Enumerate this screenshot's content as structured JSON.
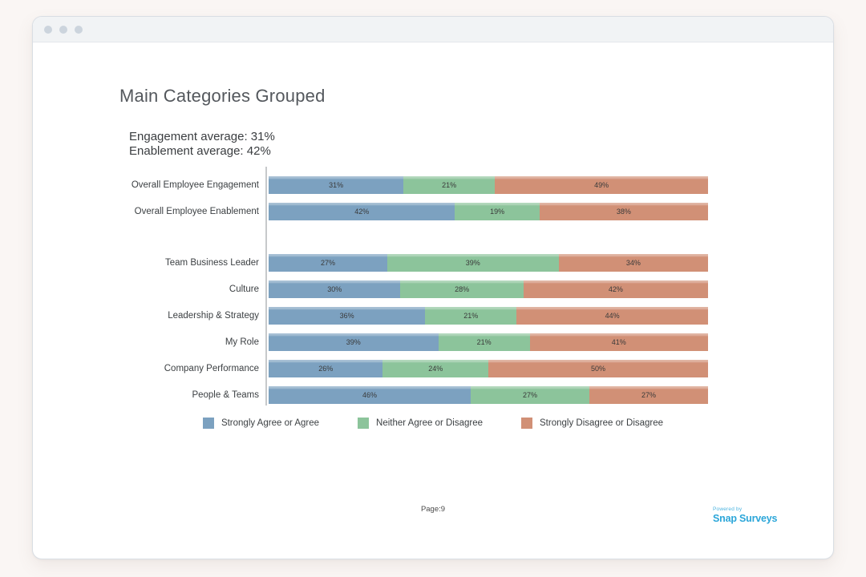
{
  "window": {
    "traffic_dots": [
      "window-dot",
      "window-dot",
      "window-dot"
    ]
  },
  "report": {
    "title": "Main Categories Grouped",
    "summary": {
      "line1": "Engagement average: 31%",
      "line2": "Enablement average: 42%"
    },
    "footer": {
      "page_label": "Page:9",
      "powered_by": "Powered by",
      "brand": "Snap Surveys",
      "brand_color": "#2ba6d9"
    }
  },
  "chart_data": {
    "type": "bar",
    "orientation": "horizontal",
    "stacked": true,
    "normalized_to_full_width": true,
    "grid": false,
    "legend_position": "bottom",
    "value_suffix": "%",
    "categories": [
      "Overall Employee Engagement",
      "Overall Employee Enablement",
      "Team Business Leader",
      "Culture",
      "Leadership & Strategy",
      "My Role",
      "Company Performance",
      "People & Teams"
    ],
    "group_break_after_index": 1,
    "series": [
      {
        "name": "Strongly Agree or Agree",
        "color": "#7CA1C0",
        "values": [
          31,
          42,
          27,
          30,
          36,
          39,
          26,
          46
        ]
      },
      {
        "name": "Neither Agree or Disagree",
        "color": "#8CC49B",
        "values": [
          21,
          19,
          39,
          28,
          21,
          21,
          24,
          27
        ]
      },
      {
        "name": "Strongly Disagree or Disagree",
        "color": "#D19076",
        "values": [
          49,
          38,
          34,
          42,
          44,
          41,
          50,
          27
        ]
      }
    ]
  }
}
